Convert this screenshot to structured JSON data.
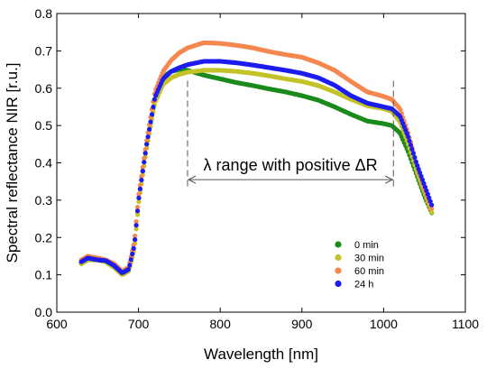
{
  "chart_data": {
    "type": "scatter",
    "xlabel": "Wavelength [nm]",
    "ylabel": "Spectral reflectance NIR [r.u.]",
    "xlim": [
      600,
      1100
    ],
    "ylim": [
      0.0,
      0.8
    ],
    "xticks": [
      "600",
      "700",
      "800",
      "900",
      "1000",
      "1100"
    ],
    "yticks": [
      "0.0",
      "0.1",
      "0.2",
      "0.3",
      "0.4",
      "0.5",
      "0.6",
      "0.7",
      "0.8"
    ],
    "grid": false,
    "legend_position": "lower-right",
    "annotation": {
      "text": "λ range with positive ΔR",
      "x_start": 760,
      "x_end": 1012,
      "y_arrow": 0.355,
      "marker_top": 0.62
    },
    "series": [
      {
        "name": "0 min",
        "color": "#1a8a1a",
        "points": [
          [
            630,
            0.13
          ],
          [
            638,
            0.14
          ],
          [
            650,
            0.14
          ],
          [
            660,
            0.135
          ],
          [
            670,
            0.12
          ],
          [
            680,
            0.105
          ],
          [
            688,
            0.11
          ],
          [
            695,
            0.18
          ],
          [
            700,
            0.3
          ],
          [
            710,
            0.45
          ],
          [
            720,
            0.57
          ],
          [
            730,
            0.63
          ],
          [
            740,
            0.645
          ],
          [
            750,
            0.65
          ],
          [
            760,
            0.648
          ],
          [
            780,
            0.635
          ],
          [
            800,
            0.625
          ],
          [
            820,
            0.615
          ],
          [
            840,
            0.607
          ],
          [
            860,
            0.598
          ],
          [
            880,
            0.59
          ],
          [
            900,
            0.58
          ],
          [
            920,
            0.568
          ],
          [
            940,
            0.55
          ],
          [
            960,
            0.53
          ],
          [
            980,
            0.512
          ],
          [
            1000,
            0.505
          ],
          [
            1010,
            0.5
          ],
          [
            1020,
            0.48
          ],
          [
            1030,
            0.43
          ],
          [
            1040,
            0.37
          ],
          [
            1050,
            0.31
          ],
          [
            1060,
            0.26
          ]
        ]
      },
      {
        "name": "30 min",
        "color": "#c3c328",
        "points": [
          [
            630,
            0.13
          ],
          [
            638,
            0.14
          ],
          [
            650,
            0.14
          ],
          [
            660,
            0.135
          ],
          [
            670,
            0.12
          ],
          [
            680,
            0.1
          ],
          [
            688,
            0.11
          ],
          [
            695,
            0.17
          ],
          [
            700,
            0.29
          ],
          [
            710,
            0.44
          ],
          [
            720,
            0.56
          ],
          [
            730,
            0.61
          ],
          [
            740,
            0.628
          ],
          [
            750,
            0.637
          ],
          [
            760,
            0.643
          ],
          [
            780,
            0.648
          ],
          [
            800,
            0.648
          ],
          [
            820,
            0.645
          ],
          [
            840,
            0.64
          ],
          [
            860,
            0.633
          ],
          [
            880,
            0.625
          ],
          [
            900,
            0.618
          ],
          [
            920,
            0.607
          ],
          [
            940,
            0.59
          ],
          [
            960,
            0.57
          ],
          [
            980,
            0.553
          ],
          [
            1000,
            0.545
          ],
          [
            1010,
            0.538
          ],
          [
            1020,
            0.51
          ],
          [
            1030,
            0.45
          ],
          [
            1040,
            0.38
          ],
          [
            1050,
            0.32
          ],
          [
            1060,
            0.26
          ]
        ]
      },
      {
        "name": "60 min",
        "color": "#f5874f",
        "points": [
          [
            630,
            0.14
          ],
          [
            638,
            0.15
          ],
          [
            650,
            0.145
          ],
          [
            660,
            0.14
          ],
          [
            670,
            0.13
          ],
          [
            680,
            0.11
          ],
          [
            688,
            0.12
          ],
          [
            695,
            0.19
          ],
          [
            700,
            0.31
          ],
          [
            710,
            0.46
          ],
          [
            720,
            0.59
          ],
          [
            730,
            0.645
          ],
          [
            740,
            0.675
          ],
          [
            750,
            0.695
          ],
          [
            760,
            0.708
          ],
          [
            780,
            0.722
          ],
          [
            800,
            0.72
          ],
          [
            820,
            0.715
          ],
          [
            840,
            0.708
          ],
          [
            860,
            0.698
          ],
          [
            880,
            0.69
          ],
          [
            900,
            0.683
          ],
          [
            920,
            0.668
          ],
          [
            940,
            0.648
          ],
          [
            960,
            0.618
          ],
          [
            980,
            0.59
          ],
          [
            1000,
            0.578
          ],
          [
            1010,
            0.57
          ],
          [
            1020,
            0.545
          ],
          [
            1030,
            0.48
          ],
          [
            1040,
            0.4
          ],
          [
            1050,
            0.33
          ],
          [
            1060,
            0.27
          ]
        ]
      },
      {
        "name": "24 h",
        "color": "#1c1cf0",
        "points": [
          [
            630,
            0.135
          ],
          [
            638,
            0.145
          ],
          [
            650,
            0.14
          ],
          [
            660,
            0.138
          ],
          [
            670,
            0.125
          ],
          [
            680,
            0.105
          ],
          [
            688,
            0.115
          ],
          [
            695,
            0.18
          ],
          [
            700,
            0.3
          ],
          [
            710,
            0.45
          ],
          [
            720,
            0.575
          ],
          [
            730,
            0.625
          ],
          [
            740,
            0.645
          ],
          [
            750,
            0.655
          ],
          [
            760,
            0.663
          ],
          [
            780,
            0.672
          ],
          [
            800,
            0.672
          ],
          [
            820,
            0.668
          ],
          [
            840,
            0.662
          ],
          [
            860,
            0.655
          ],
          [
            880,
            0.648
          ],
          [
            900,
            0.64
          ],
          [
            920,
            0.628
          ],
          [
            940,
            0.608
          ],
          [
            960,
            0.58
          ],
          [
            980,
            0.56
          ],
          [
            1000,
            0.55
          ],
          [
            1010,
            0.545
          ],
          [
            1020,
            0.525
          ],
          [
            1030,
            0.47
          ],
          [
            1040,
            0.4
          ],
          [
            1050,
            0.34
          ],
          [
            1060,
            0.28
          ]
        ]
      }
    ]
  }
}
